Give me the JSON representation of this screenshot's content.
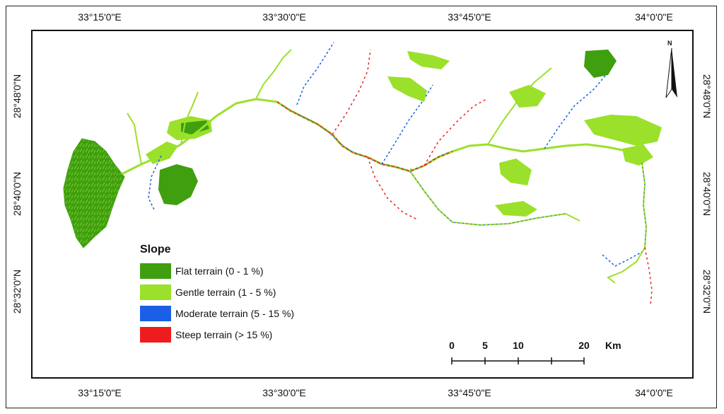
{
  "map": {
    "lon_ticks": [
      "33°15'0\"E",
      "33°30'0\"E",
      "33°45'0\"E",
      "34°0'0\"E"
    ],
    "lat_ticks": [
      "28°48'0\"N",
      "28°40'0\"N",
      "28°32'0\"N"
    ]
  },
  "legend": {
    "title": "Slope",
    "items": [
      {
        "label": "Flat terrain (0 - 1 %)",
        "color": "#3f9f0f"
      },
      {
        "label": "Gentle terrain (1 - 5 %)",
        "color": "#9be02a"
      },
      {
        "label": "Moderate terrain (5 - 15 %)",
        "color": "#1a5fe6"
      },
      {
        "label": "Steep terrain (> 15 %)",
        "color": "#ee1c1c"
      }
    ]
  },
  "scale_bar": {
    "labels": [
      "0",
      "5",
      "10",
      "20"
    ],
    "unit": "Km"
  },
  "north_arrow": {
    "label": "N"
  }
}
